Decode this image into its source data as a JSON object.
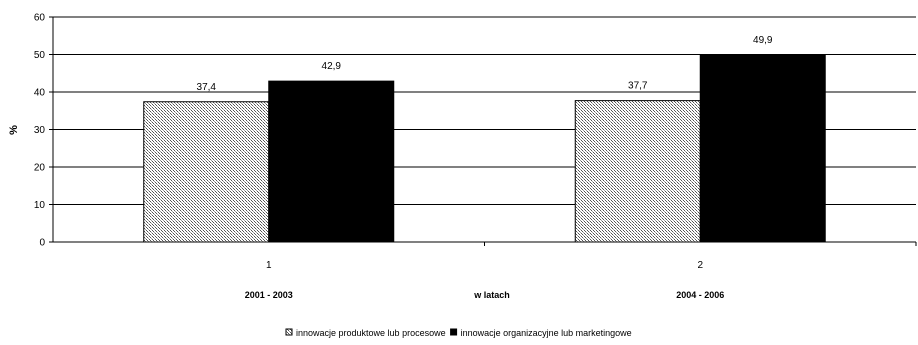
{
  "chart_data": {
    "type": "bar",
    "categories": [
      "1",
      "2"
    ],
    "category_sublabels": [
      "2001 - 2003",
      "2004 - 2006"
    ],
    "xlabel": "w latach",
    "ylabel": "%",
    "ylim": [
      0,
      60
    ],
    "yticks": [
      0,
      10,
      20,
      30,
      40,
      50,
      60
    ],
    "grid": true,
    "legend_position": "bottom",
    "series": [
      {
        "name": "innowacje produktowe lub procesowe",
        "values": [
          37.4,
          37.7
        ],
        "value_labels": [
          "37,4",
          "37,7"
        ],
        "fill": "pattern-crosshatch"
      },
      {
        "name": "innowacje organizacyjne lub marketingowe",
        "values": [
          42.9,
          49.9
        ],
        "value_labels": [
          "42,9",
          "49,9"
        ],
        "fill": "#000000"
      }
    ]
  }
}
